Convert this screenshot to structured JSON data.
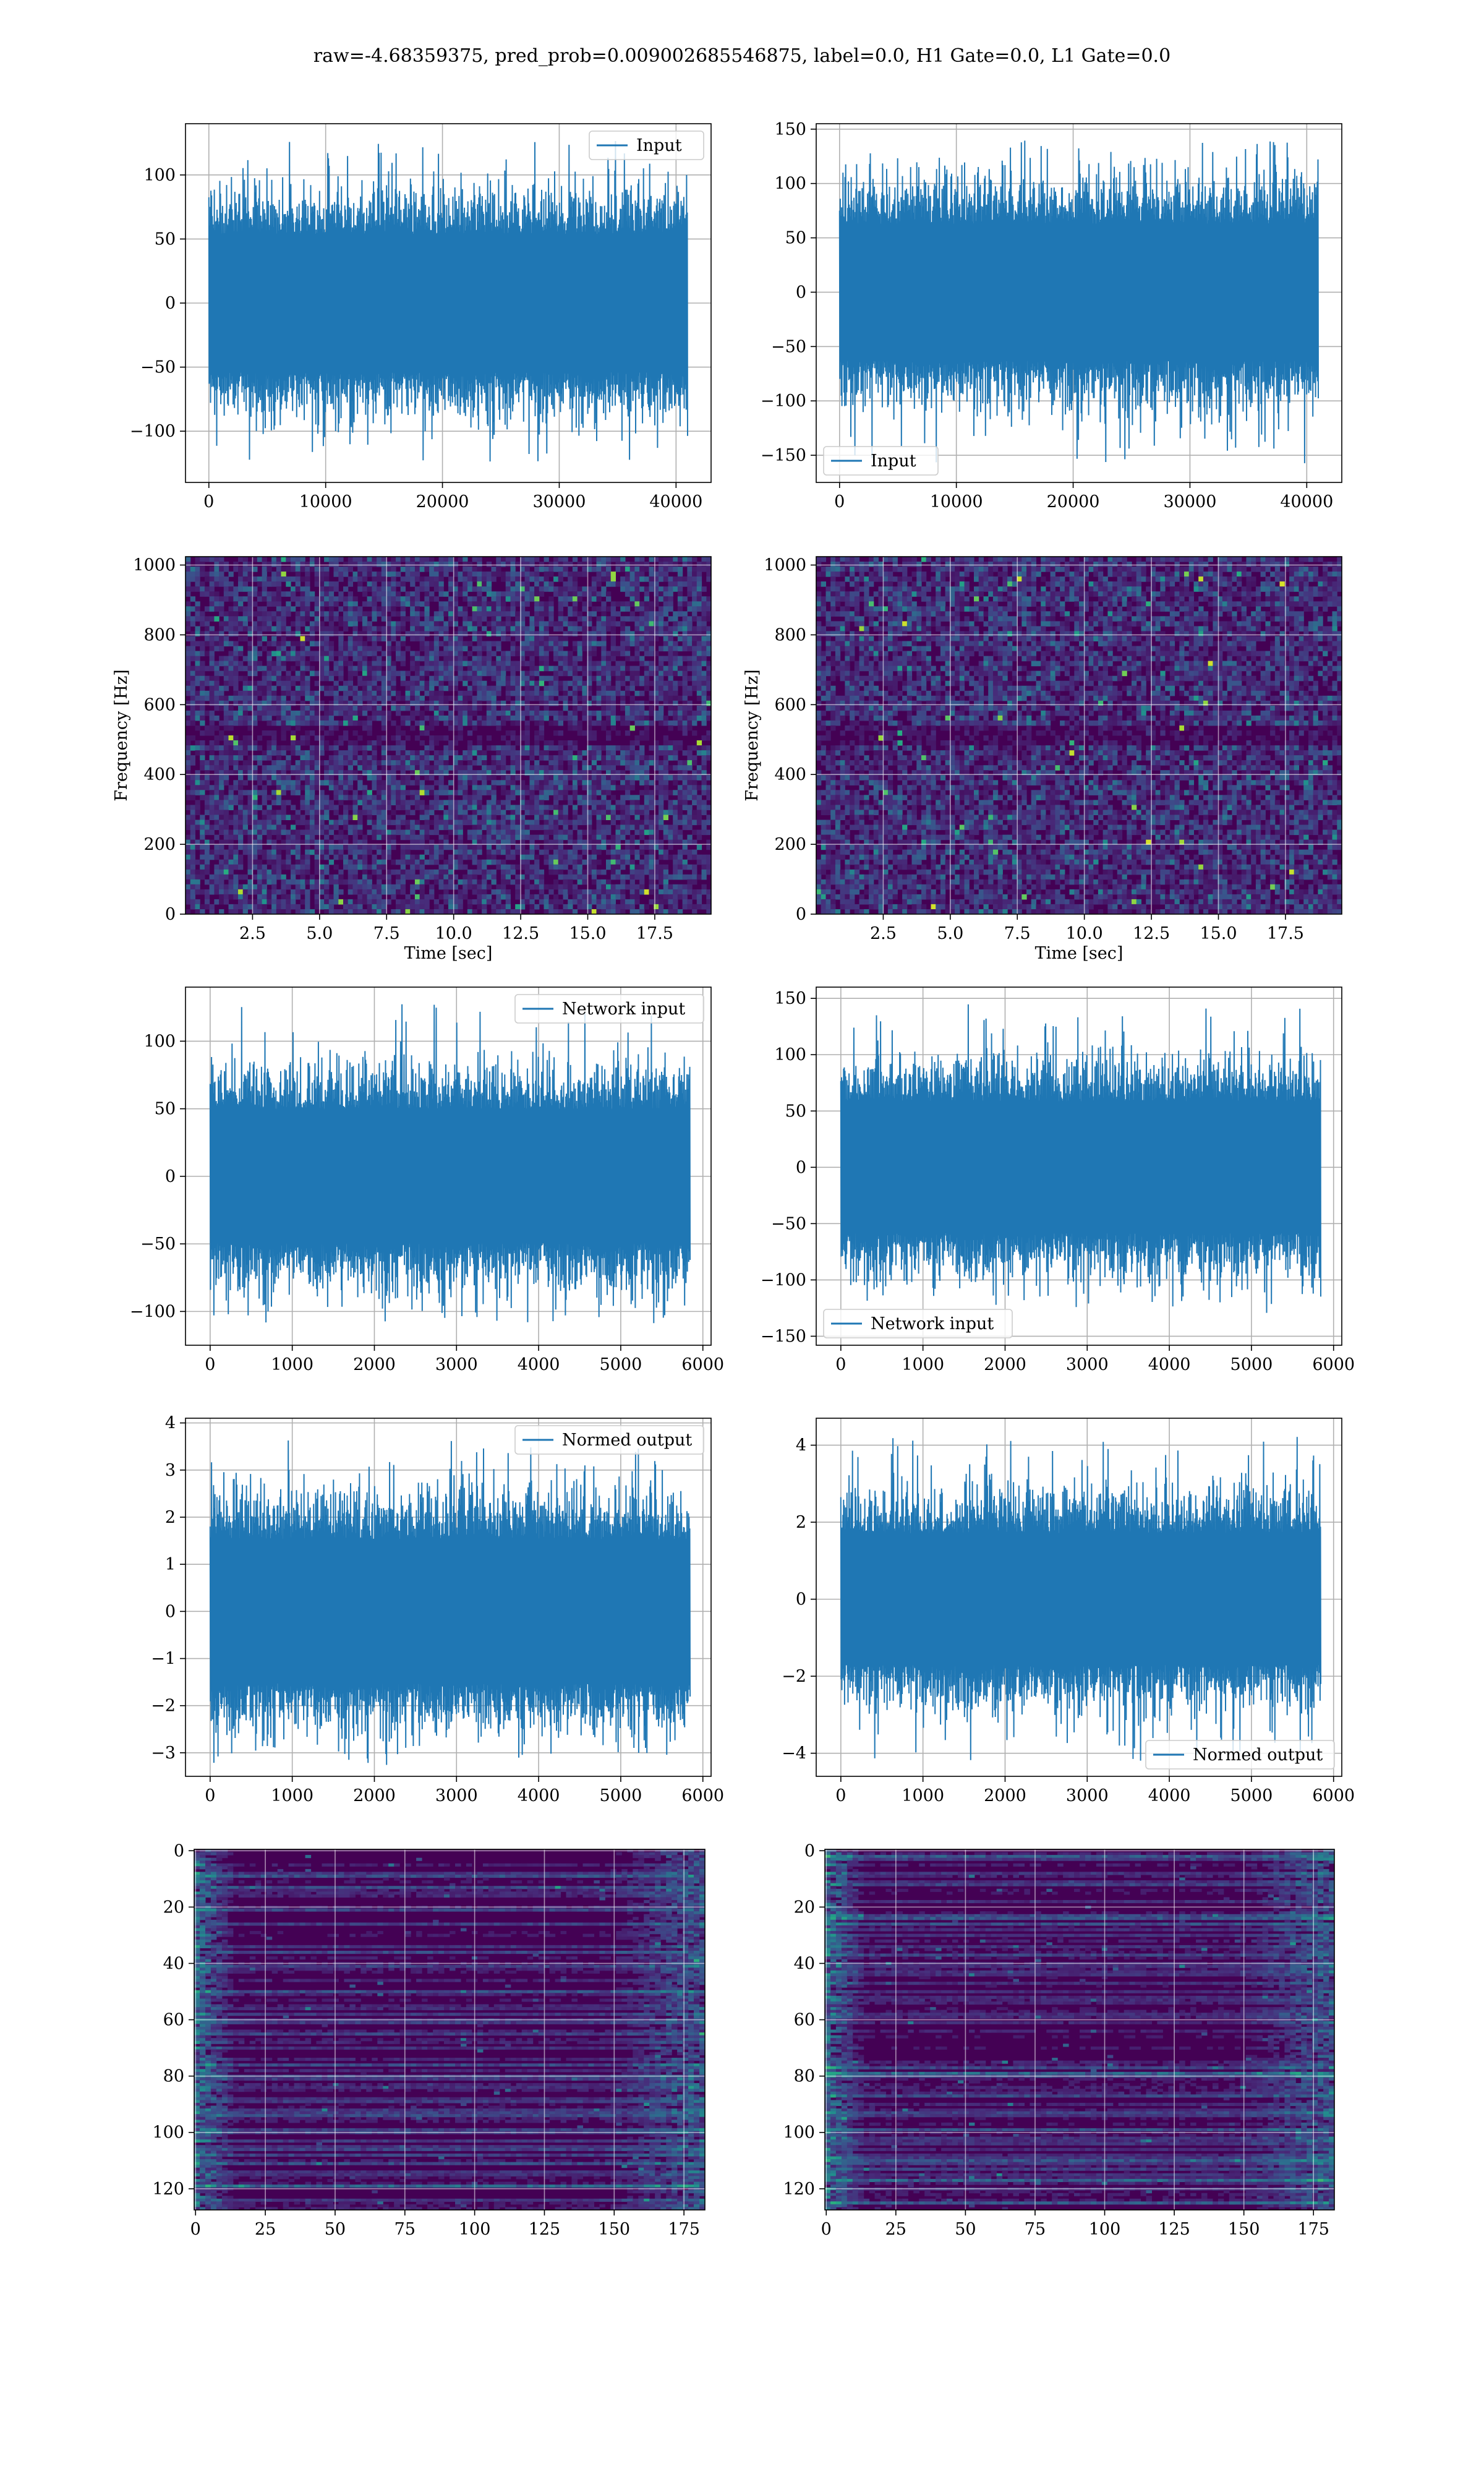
{
  "figure": {
    "title": "raw=-4.68359375, pred_prob=0.009002685546875, label=0.0, H1 Gate=0.0, L1 Gate=0.0"
  },
  "colors": {
    "line": "#1f77b4",
    "grid": "#b0b0b0",
    "viridis_low": "#440154",
    "viridis_mid": "#21918c",
    "viridis_high": "#fde725"
  },
  "chart_data": [
    {
      "id": "input_h1",
      "type": "line",
      "series": [
        {
          "name": "Input",
          "color": "#1f77b4",
          "samples": 40960,
          "band": [
            -60,
            60
          ],
          "min": -128,
          "max": 128
        }
      ],
      "xlim": [
        -2000,
        43000
      ],
      "ylim": [
        -140,
        140
      ],
      "xticks": [
        0,
        10000,
        20000,
        30000,
        40000
      ],
      "xtick_labels": [
        "0",
        "10000",
        "20000",
        "30000",
        "40000"
      ],
      "yticks": [
        -100,
        -50,
        0,
        50,
        100
      ],
      "ytick_labels": [
        "−100",
        "−50",
        "0",
        "50",
        "100"
      ],
      "legend": "top-right",
      "grid": true
    },
    {
      "id": "input_l1",
      "type": "line",
      "series": [
        {
          "name": "Input",
          "color": "#1f77b4",
          "samples": 40960,
          "band": [
            -70,
            70
          ],
          "min": -160,
          "max": 140
        }
      ],
      "xlim": [
        -2000,
        43000
      ],
      "ylim": [
        -175,
        155
      ],
      "xticks": [
        0,
        10000,
        20000,
        30000,
        40000
      ],
      "xtick_labels": [
        "0",
        "10000",
        "20000",
        "30000",
        "40000"
      ],
      "yticks": [
        -150,
        -100,
        -50,
        0,
        50,
        100,
        150
      ],
      "ytick_labels": [
        "−150",
        "−100",
        "−50",
        "0",
        "50",
        "100",
        "150"
      ],
      "legend": "bottom-left",
      "grid": true
    },
    {
      "id": "spec_h1",
      "type": "heatmap",
      "colormap": "viridis",
      "xlim": [
        0,
        19.6
      ],
      "ylim": [
        0,
        1024
      ],
      "xticks": [
        2.5,
        5.0,
        7.5,
        10.0,
        12.5,
        15.0,
        17.5
      ],
      "xtick_labels": [
        "2.5",
        "5.0",
        "7.5",
        "10.0",
        "12.5",
        "15.0",
        "17.5"
      ],
      "yticks": [
        0,
        200,
        400,
        600,
        800,
        1000
      ],
      "ytick_labels": [
        "0",
        "200",
        "400",
        "600",
        "800",
        "1000"
      ],
      "xlabel": "Time [sec]",
      "ylabel": "Frequency [Hz]",
      "grid": true
    },
    {
      "id": "spec_l1",
      "type": "heatmap",
      "colormap": "viridis",
      "xlim": [
        0,
        19.6
      ],
      "ylim": [
        0,
        1024
      ],
      "xticks": [
        2.5,
        5.0,
        7.5,
        10.0,
        12.5,
        15.0,
        17.5
      ],
      "xtick_labels": [
        "2.5",
        "5.0",
        "7.5",
        "10.0",
        "12.5",
        "15.0",
        "17.5"
      ],
      "yticks": [
        0,
        200,
        400,
        600,
        800,
        1000
      ],
      "ytick_labels": [
        "0",
        "200",
        "400",
        "600",
        "800",
        "1000"
      ],
      "xlabel": "Time [sec]",
      "ylabel": "Frequency [Hz]",
      "grid": true
    },
    {
      "id": "net_h1",
      "type": "line",
      "series": [
        {
          "name": "Network input",
          "color": "#1f77b4",
          "samples": 5840,
          "band": [
            -55,
            55
          ],
          "min": -110,
          "max": 128
        }
      ],
      "xlim": [
        -300,
        6100
      ],
      "ylim": [
        -125,
        140
      ],
      "xticks": [
        0,
        1000,
        2000,
        3000,
        4000,
        5000,
        6000
      ],
      "xtick_labels": [
        "0",
        "1000",
        "2000",
        "3000",
        "4000",
        "5000",
        "6000"
      ],
      "yticks": [
        -100,
        -50,
        0,
        50,
        100
      ],
      "ytick_labels": [
        "−100",
        "−50",
        "0",
        "50",
        "100"
      ],
      "legend": "top-right",
      "grid": true
    },
    {
      "id": "net_l1",
      "type": "line",
      "series": [
        {
          "name": "Network input",
          "color": "#1f77b4",
          "samples": 5840,
          "band": [
            -65,
            65
          ],
          "min": -125,
          "max": 145
        }
      ],
      "xlim": [
        -300,
        6100
      ],
      "ylim": [
        -158,
        160
      ],
      "xticks": [
        0,
        1000,
        2000,
        3000,
        4000,
        5000,
        6000
      ],
      "xtick_labels": [
        "0",
        "1000",
        "2000",
        "3000",
        "4000",
        "5000",
        "6000"
      ],
      "yticks": [
        -150,
        -100,
        -50,
        0,
        50,
        100,
        150
      ],
      "ytick_labels": [
        "−150",
        "−100",
        "−50",
        "0",
        "50",
        "100",
        "150"
      ],
      "legend": "bottom-left",
      "grid": true
    },
    {
      "id": "norm_h1",
      "type": "line",
      "series": [
        {
          "name": "Normed output",
          "color": "#1f77b4",
          "samples": 5840,
          "band": [
            -1.7,
            1.7
          ],
          "min": -3.2,
          "max": 3.7
        }
      ],
      "xlim": [
        -300,
        6100
      ],
      "ylim": [
        -3.5,
        4.1
      ],
      "xticks": [
        0,
        1000,
        2000,
        3000,
        4000,
        5000,
        6000
      ],
      "xtick_labels": [
        "0",
        "1000",
        "2000",
        "3000",
        "4000",
        "5000",
        "6000"
      ],
      "yticks": [
        -3,
        -2,
        -1,
        0,
        1,
        2,
        3,
        4
      ],
      "ytick_labels": [
        "−3",
        "−2",
        "−1",
        "0",
        "1",
        "2",
        "3",
        "4"
      ],
      "legend": "top-right",
      "grid": true
    },
    {
      "id": "norm_l1",
      "type": "line",
      "series": [
        {
          "name": "Normed output",
          "color": "#1f77b4",
          "samples": 5840,
          "band": [
            -1.9,
            1.9
          ],
          "min": -4.2,
          "max": 4.3
        }
      ],
      "xlim": [
        -300,
        6100
      ],
      "ylim": [
        -4.6,
        4.7
      ],
      "xticks": [
        0,
        1000,
        2000,
        3000,
        4000,
        5000,
        6000
      ],
      "xtick_labels": [
        "0",
        "1000",
        "2000",
        "3000",
        "4000",
        "5000",
        "6000"
      ],
      "yticks": [
        -4,
        -2,
        0,
        2,
        4
      ],
      "ytick_labels": [
        "−4",
        "−2",
        "0",
        "2",
        "4"
      ],
      "legend": "bottom-right",
      "grid": true
    },
    {
      "id": "feat_h1",
      "type": "heatmap",
      "colormap": "viridis",
      "rows": 128,
      "cols": 183,
      "xlim": [
        -0.5,
        182.5
      ],
      "ylim": [
        127.5,
        -0.5
      ],
      "xticks": [
        0,
        25,
        50,
        75,
        100,
        125,
        150,
        175
      ],
      "xtick_labels": [
        "0",
        "25",
        "50",
        "75",
        "100",
        "125",
        "150",
        "175"
      ],
      "yticks": [
        0,
        20,
        40,
        60,
        80,
        100,
        120
      ],
      "ytick_labels": [
        "0",
        "20",
        "40",
        "60",
        "80",
        "100",
        "120"
      ],
      "grid": true
    },
    {
      "id": "feat_l1",
      "type": "heatmap",
      "colormap": "viridis",
      "rows": 128,
      "cols": 183,
      "xlim": [
        -0.5,
        182.5
      ],
      "ylim": [
        127.5,
        -0.5
      ],
      "xticks": [
        0,
        25,
        50,
        75,
        100,
        125,
        150,
        175
      ],
      "xtick_labels": [
        "0",
        "25",
        "50",
        "75",
        "100",
        "125",
        "150",
        "175"
      ],
      "yticks": [
        0,
        20,
        40,
        60,
        80,
        100,
        120
      ],
      "ytick_labels": [
        "0",
        "20",
        "40",
        "60",
        "80",
        "100",
        "120"
      ],
      "grid": true
    }
  ]
}
